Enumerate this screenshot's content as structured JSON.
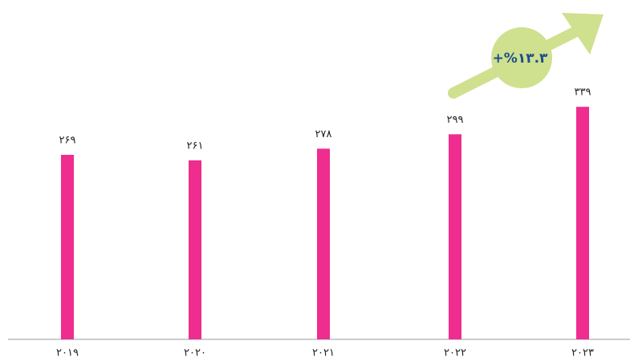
{
  "chart_data": {
    "type": "bar",
    "categories": [
      "۲۰۱۹",
      "۲۰۲۰",
      "۲۰۲۱",
      "۲۰۲۲",
      "۲۰۲۳"
    ],
    "values": [
      269,
      261,
      278,
      299,
      339
    ],
    "value_labels": [
      "۲۶۹",
      "۲۶۱",
      "۲۷۸",
      "۲۹۹",
      "۳۳۹"
    ],
    "color": "#ee2d8f",
    "ylim": [
      0,
      400
    ],
    "annotation": "+%۱۳.۳"
  }
}
